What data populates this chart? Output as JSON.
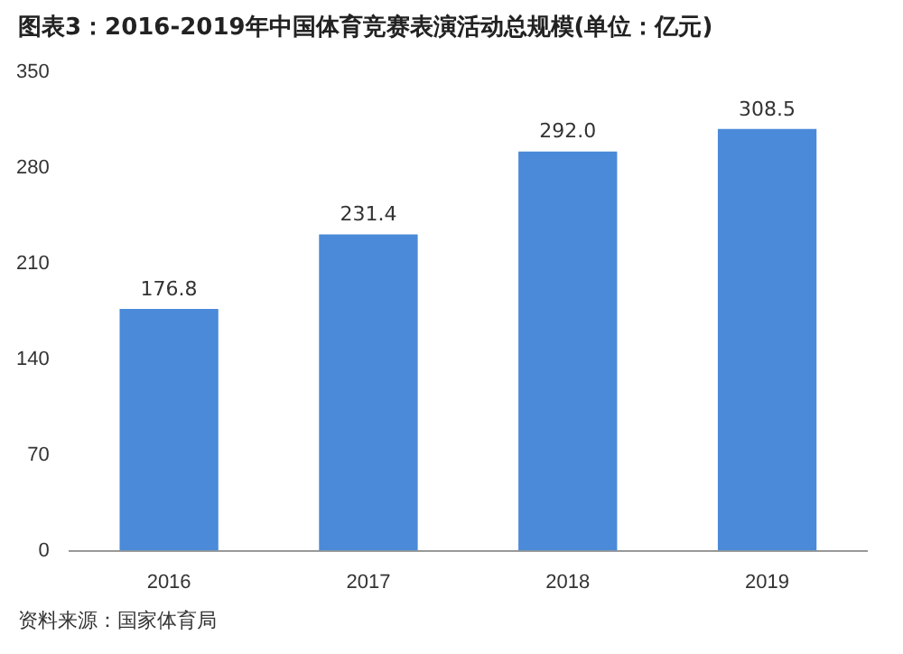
{
  "chart_data": {
    "type": "bar",
    "title": "图表3：2016-2019年中国体育竞赛表演活动总规模(单位：亿元)",
    "categories": [
      "2016",
      "2017",
      "2018",
      "2019"
    ],
    "values": [
      176.8,
      231.4,
      292.0,
      308.5
    ],
    "value_labels": [
      "176.8",
      "231.4",
      "292.0",
      "308.5"
    ],
    "color": "#4a8ad8",
    "ylim": [
      0,
      350
    ],
    "yticks": [
      0,
      70,
      140,
      210,
      280,
      350
    ],
    "grid": false,
    "legend": false,
    "annotations": [
      "资料来源：国家体育局"
    ]
  }
}
